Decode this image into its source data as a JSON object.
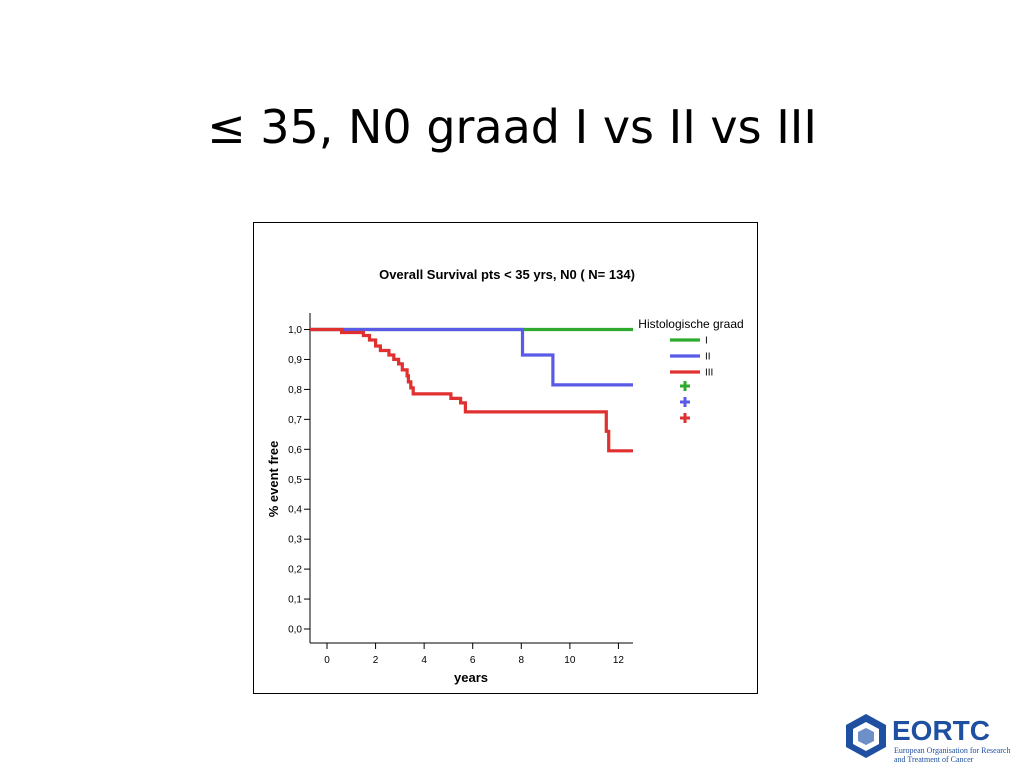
{
  "slide": {
    "title": "≤ 35, N0 graad I vs II vs III"
  },
  "logo": {
    "name": "EORTC",
    "subtitle_line1": "European Organisation for Research",
    "subtitle_line2": "and Treatment of Cancer",
    "color": "#1e4fa0"
  },
  "chart_data": {
    "type": "line",
    "subtype": "kaplan-meier step",
    "title": "Overall Survival pts < 35 yrs, N0 ( N= 134)",
    "xlabel": "years",
    "ylabel": "% event free",
    "xlim": [
      -0.7,
      12.6
    ],
    "ylim": [
      0,
      1.0
    ],
    "x_ticks": [
      0,
      2,
      4,
      6,
      8,
      10,
      12
    ],
    "x_tick_labels": [
      "0",
      "2",
      "4",
      "6",
      "8",
      "10",
      "12"
    ],
    "y_ticks": [
      0,
      0.1,
      0.2,
      0.3,
      0.4,
      0.5,
      0.6,
      0.7,
      0.8,
      0.9,
      1.0
    ],
    "y_tick_labels": [
      "0,0",
      "0,1",
      "0,2",
      "0,3",
      "0,4",
      "0,5",
      "0,6",
      "0,7",
      "0,8",
      "0,9",
      "1,0"
    ],
    "grid": false,
    "legend_title": "Histologische graad",
    "legend_position": "right",
    "series": [
      {
        "name": "I",
        "color": "#2eaa2e",
        "points": [
          [
            -0.7,
            1.0
          ],
          [
            12.6,
            1.0
          ]
        ]
      },
      {
        "name": "II",
        "color": "#5a5ae8",
        "points": [
          [
            -0.7,
            1.0
          ],
          [
            8.05,
            1.0
          ],
          [
            8.05,
            0.915
          ],
          [
            9.3,
            0.915
          ],
          [
            9.3,
            0.815
          ],
          [
            12.6,
            0.815
          ]
        ]
      },
      {
        "name": "III",
        "color": "#e03030",
        "points": [
          [
            -0.7,
            1.0
          ],
          [
            0.6,
            1.0
          ],
          [
            0.6,
            0.99
          ],
          [
            1.5,
            0.99
          ],
          [
            1.5,
            0.98
          ],
          [
            1.75,
            0.98
          ],
          [
            1.75,
            0.965
          ],
          [
            2.0,
            0.965
          ],
          [
            2.0,
            0.945
          ],
          [
            2.2,
            0.945
          ],
          [
            2.2,
            0.93
          ],
          [
            2.55,
            0.93
          ],
          [
            2.55,
            0.915
          ],
          [
            2.75,
            0.915
          ],
          [
            2.75,
            0.9
          ],
          [
            2.95,
            0.9
          ],
          [
            2.95,
            0.885
          ],
          [
            3.1,
            0.885
          ],
          [
            3.1,
            0.865
          ],
          [
            3.3,
            0.865
          ],
          [
            3.3,
            0.845
          ],
          [
            3.35,
            0.845
          ],
          [
            3.35,
            0.825
          ],
          [
            3.45,
            0.825
          ],
          [
            3.45,
            0.805
          ],
          [
            3.55,
            0.805
          ],
          [
            3.55,
            0.785
          ],
          [
            5.1,
            0.785
          ],
          [
            5.1,
            0.77
          ],
          [
            5.5,
            0.77
          ],
          [
            5.5,
            0.755
          ],
          [
            5.7,
            0.755
          ],
          [
            5.7,
            0.725
          ],
          [
            11.5,
            0.725
          ],
          [
            11.5,
            0.66
          ],
          [
            11.6,
            0.66
          ],
          [
            11.6,
            0.595
          ],
          [
            12.6,
            0.595
          ]
        ]
      }
    ],
    "censor_legend": [
      {
        "symbol": "+",
        "color": "#2eaa2e"
      },
      {
        "symbol": "+",
        "color": "#5a5ae8"
      },
      {
        "symbol": "+",
        "color": "#e03030"
      }
    ]
  }
}
